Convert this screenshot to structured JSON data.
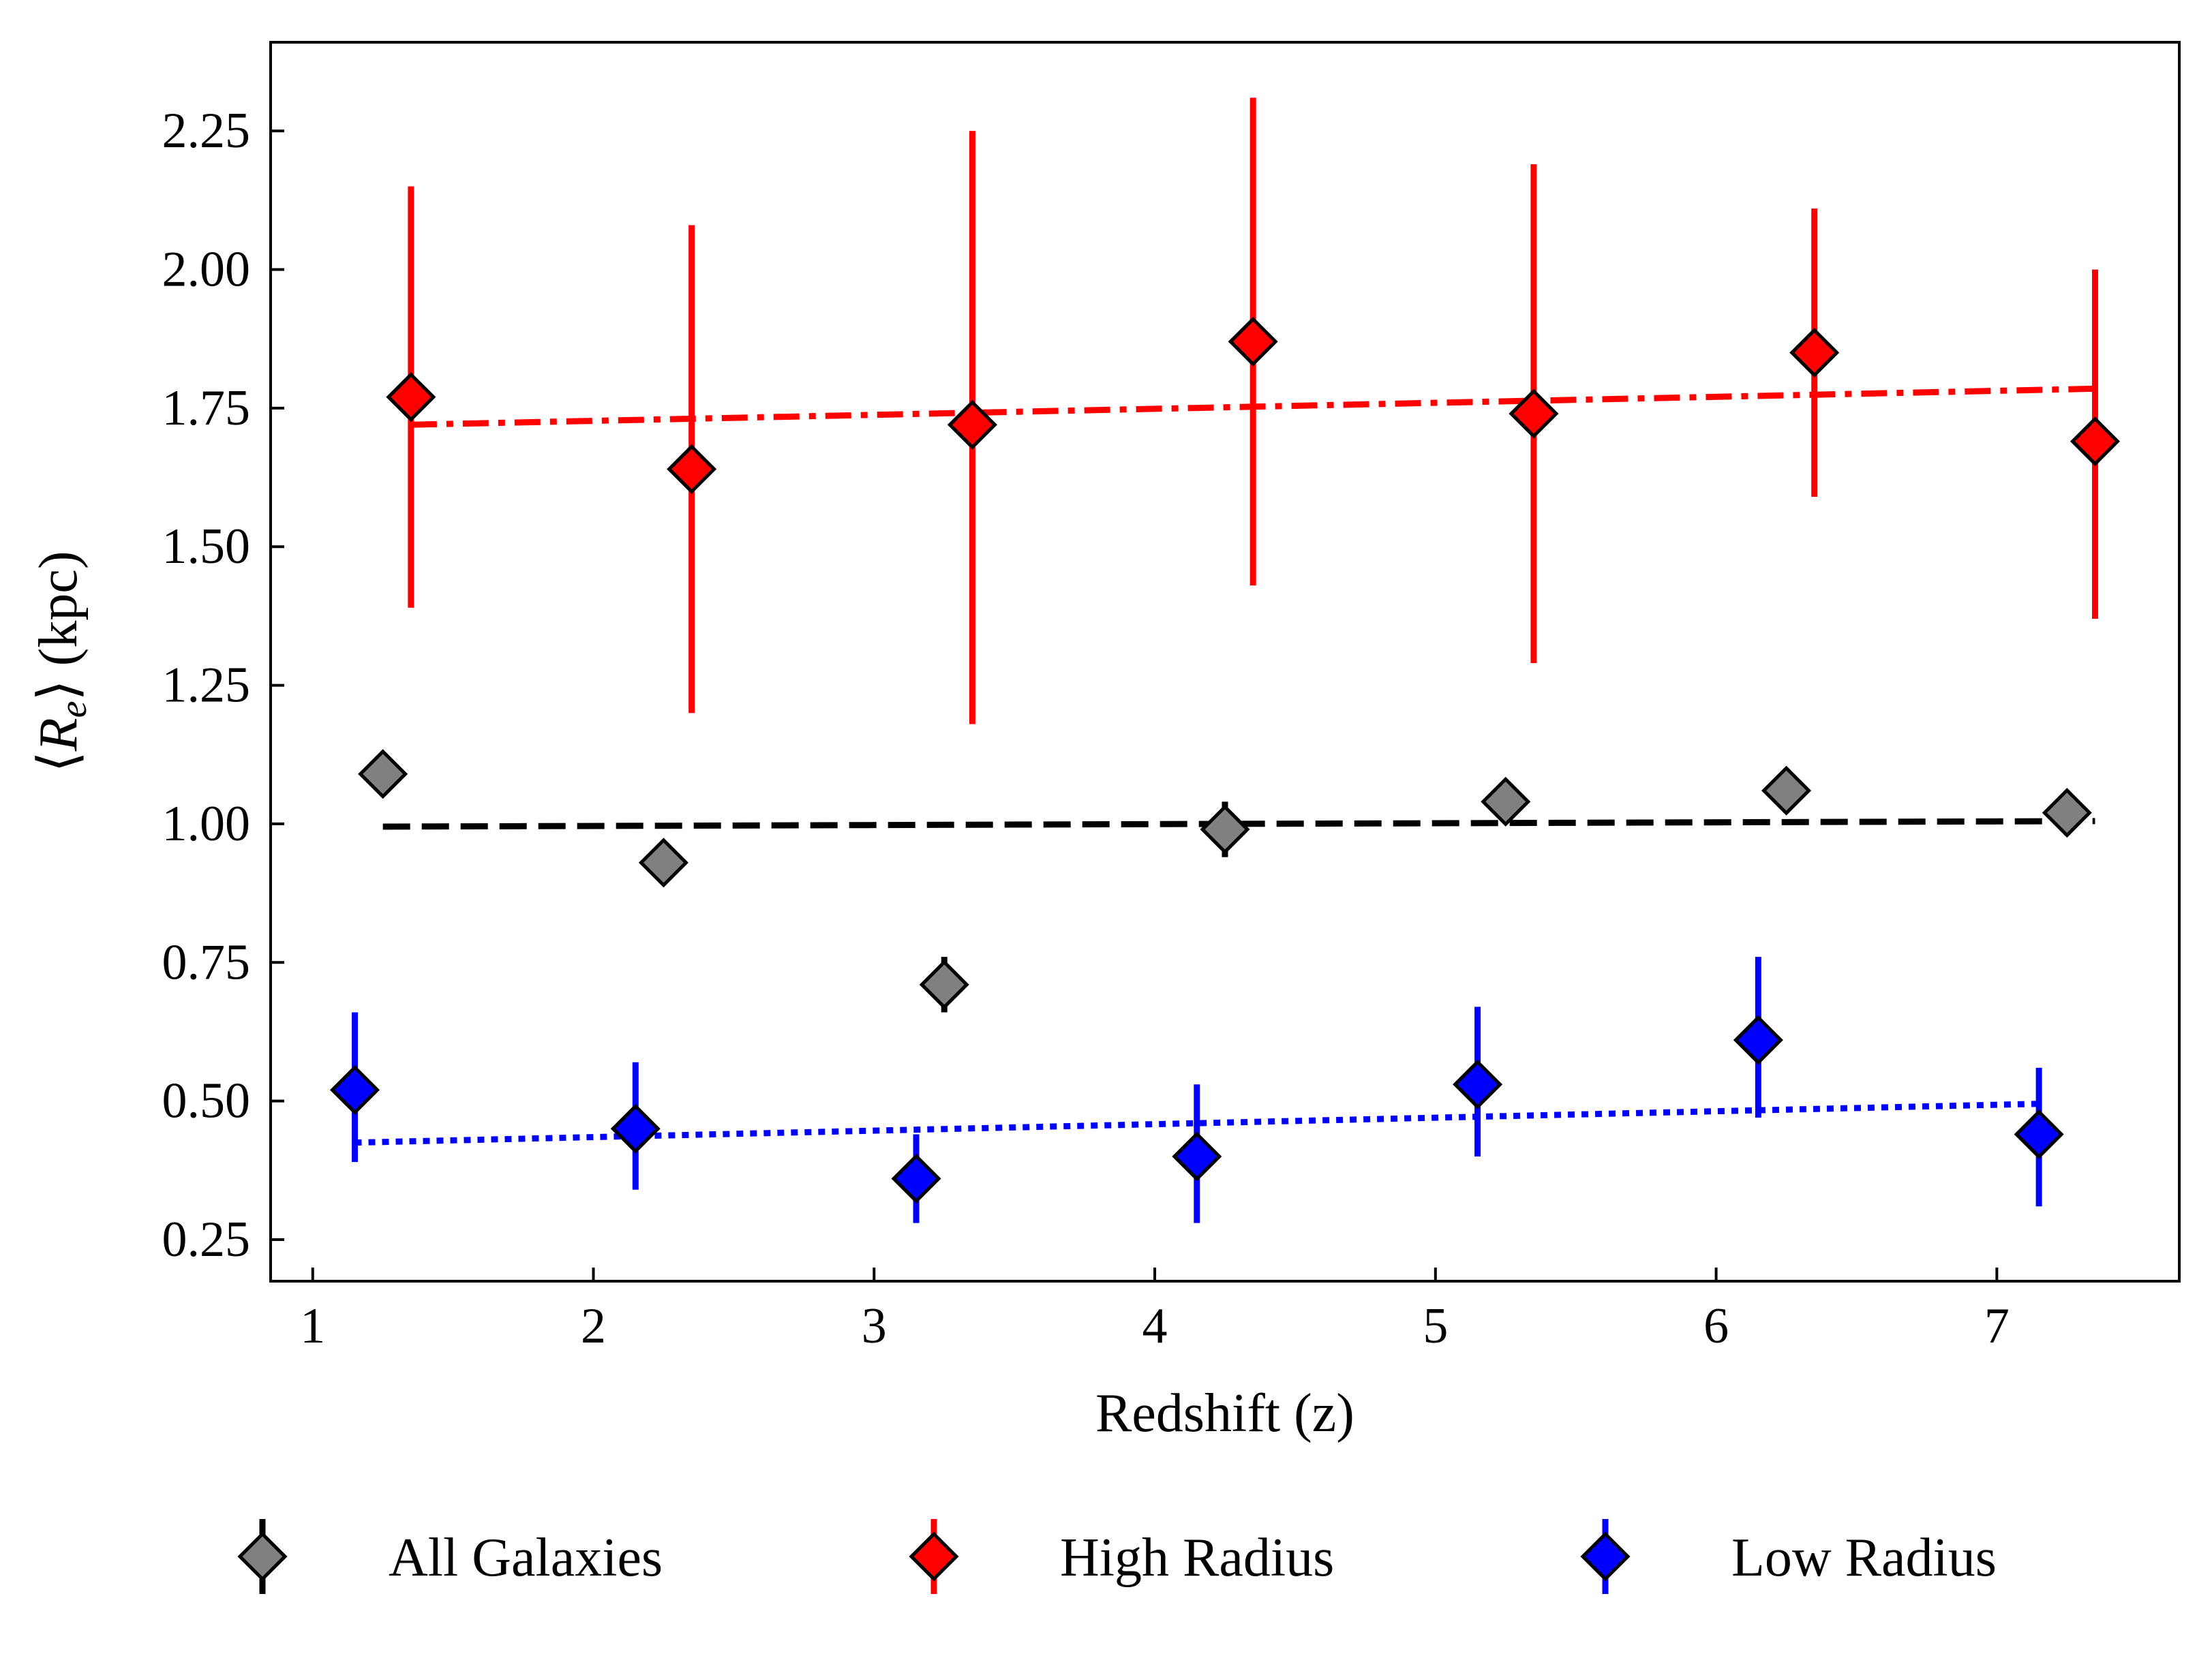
{
  "chart_data": {
    "type": "scatter",
    "xlabel": "Redshift (z)",
    "ylabel": "⟨R_e⟩ (kpc)",
    "ylabel_parts": {
      "open": "⟨",
      "symbol": "R",
      "subscript": "e",
      "close": "⟩",
      "unit": " (kpc)"
    },
    "xlim": [
      0.85,
      7.65
    ],
    "ylim": [
      0.175,
      2.41
    ],
    "xticks": [
      1,
      2,
      3,
      4,
      5,
      6,
      7
    ],
    "yticks": [
      0.25,
      0.5,
      0.75,
      1.0,
      1.25,
      1.5,
      1.75,
      2.0,
      2.25
    ],
    "ytick_labels": [
      "0.25",
      "0.50",
      "0.75",
      "1.00",
      "1.25",
      "1.50",
      "1.75",
      "2.00",
      "2.25"
    ],
    "grid": false,
    "legend_position": "bottom",
    "series": [
      {
        "name": "All Galaxies",
        "marker": "diamond",
        "color": "#808080",
        "edge_color": "#000000",
        "errorbar_color": "#000000",
        "points": [
          {
            "x": 1.25,
            "y": 1.09,
            "err": 0.01
          },
          {
            "x": 2.25,
            "y": 0.93,
            "err": 0.01
          },
          {
            "x": 3.25,
            "y": 0.71,
            "err": 0.05
          },
          {
            "x": 4.25,
            "y": 0.99,
            "err": 0.05
          },
          {
            "x": 5.25,
            "y": 1.04,
            "err": 0.02
          },
          {
            "x": 6.25,
            "y": 1.06,
            "err": 0.04
          },
          {
            "x": 7.25,
            "y": 1.02,
            "err": 0.04
          }
        ],
        "trend": {
          "style": "dashed",
          "color": "#000000",
          "x": [
            1.25,
            7.35
          ],
          "y": [
            0.995,
            1.005
          ]
        }
      },
      {
        "name": "High Radius",
        "marker": "diamond",
        "color": "#ff0000",
        "edge_color": "#000000",
        "errorbar_color": "#ff0000",
        "points": [
          {
            "x": 1.35,
            "y": 1.77,
            "lo": 1.39,
            "hi": 2.15
          },
          {
            "x": 2.35,
            "y": 1.64,
            "lo": 1.2,
            "hi": 2.08
          },
          {
            "x": 3.35,
            "y": 1.72,
            "lo": 1.18,
            "hi": 2.25
          },
          {
            "x": 4.35,
            "y": 1.87,
            "lo": 1.43,
            "hi": 2.31
          },
          {
            "x": 5.35,
            "y": 1.74,
            "lo": 1.29,
            "hi": 2.19
          },
          {
            "x": 6.35,
            "y": 1.85,
            "lo": 1.59,
            "hi": 2.11
          },
          {
            "x": 7.35,
            "y": 1.69,
            "lo": 1.37,
            "hi": 2.0
          }
        ],
        "trend": {
          "style": "dashdot",
          "color": "#ff0000",
          "x": [
            1.35,
            7.35
          ],
          "y": [
            1.72,
            1.785
          ]
        }
      },
      {
        "name": "Low Radius",
        "marker": "diamond",
        "color": "#0000ff",
        "edge_color": "#000000",
        "errorbar_color": "#0000ff",
        "points": [
          {
            "x": 1.15,
            "y": 0.52,
            "lo": 0.39,
            "hi": 0.66
          },
          {
            "x": 2.15,
            "y": 0.45,
            "lo": 0.34,
            "hi": 0.57
          },
          {
            "x": 3.15,
            "y": 0.36,
            "lo": 0.28,
            "hi": 0.44
          },
          {
            "x": 4.15,
            "y": 0.4,
            "lo": 0.28,
            "hi": 0.53
          },
          {
            "x": 5.15,
            "y": 0.53,
            "lo": 0.4,
            "hi": 0.67
          },
          {
            "x": 6.15,
            "y": 0.61,
            "lo": 0.47,
            "hi": 0.76
          },
          {
            "x": 7.15,
            "y": 0.44,
            "lo": 0.31,
            "hi": 0.56
          }
        ],
        "trend": {
          "style": "dotted",
          "color": "#0000ff",
          "x": [
            1.15,
            7.15
          ],
          "y": [
            0.425,
            0.495
          ]
        }
      }
    ]
  }
}
